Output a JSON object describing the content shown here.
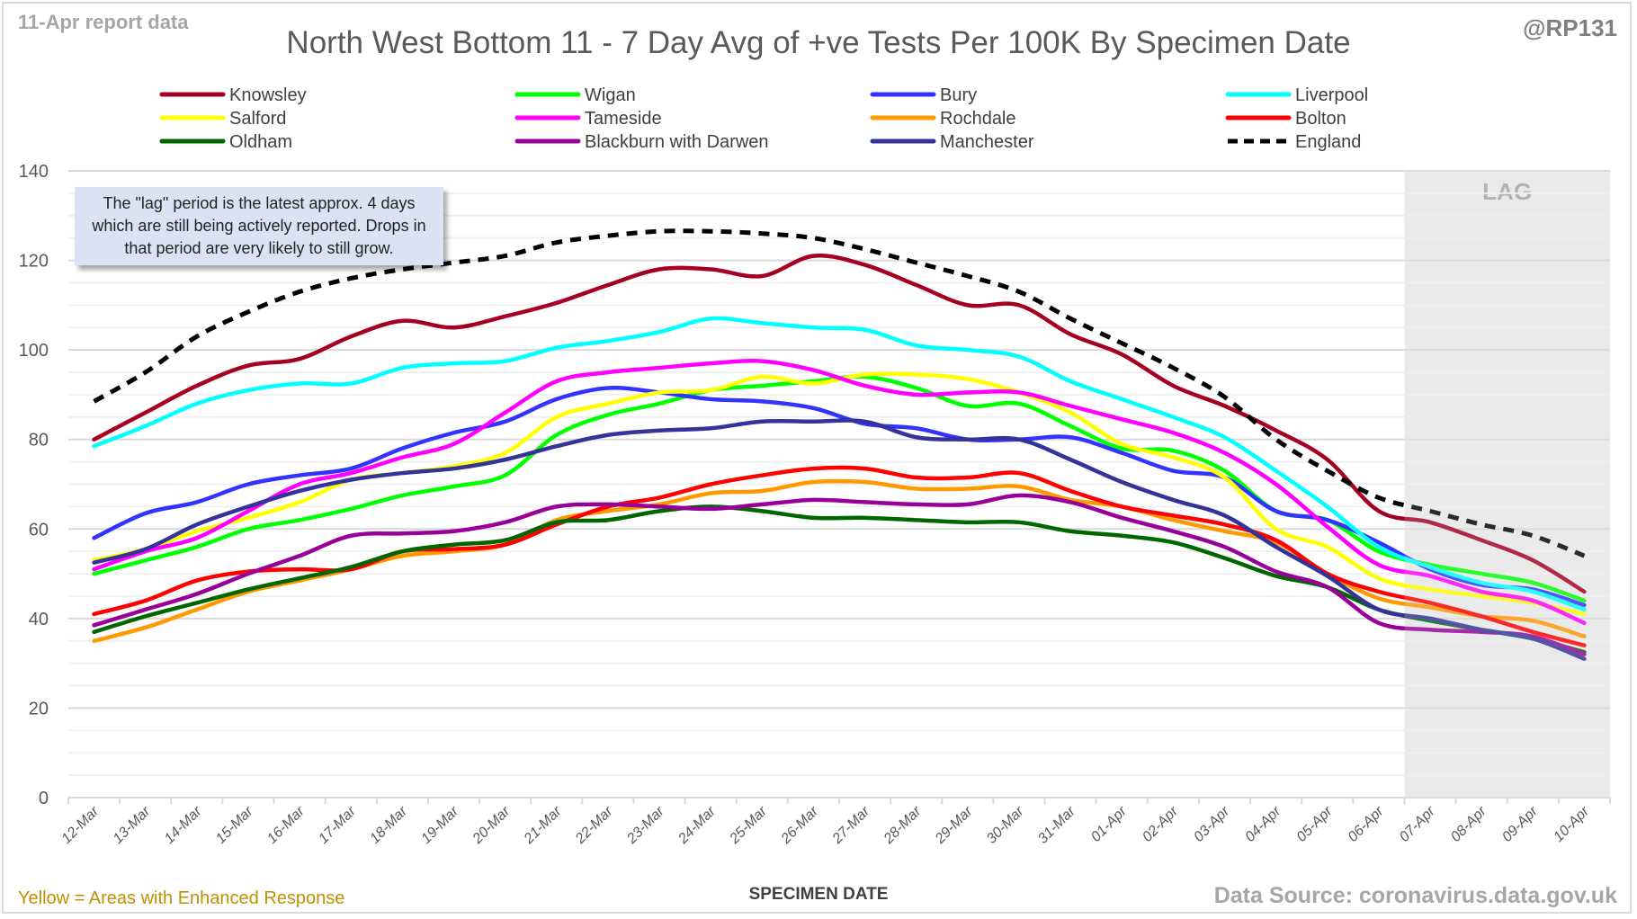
{
  "header": {
    "report_date": "11-Apr report data",
    "handle": "@RP131"
  },
  "footer": {
    "enhanced_response_note": "Yellow = Areas with Enhanced Response",
    "data_source": "Data Source: coronavirus.data.gov.uk"
  },
  "annotation": {
    "lag_note": "The \"lag\" period is the latest approx. 4 days which are still being actively reported.  Drops in that period are very likely to still grow.",
    "lag_label": "LAG"
  },
  "chart_data": {
    "type": "line",
    "title": "North West Bottom 11 - 7 Day Avg of +ve Tests Per 100K By Specimen Date",
    "xlabel": "SPECIMEN DATE",
    "ylabel": "",
    "ylim": [
      0,
      140
    ],
    "yticks": [
      0,
      20,
      40,
      60,
      80,
      100,
      120,
      140
    ],
    "grid": true,
    "legend_position": "top",
    "lag_period": {
      "start": "07-Apr",
      "end": "10-Apr"
    },
    "categories": [
      "12-Mar",
      "13-Mar",
      "14-Mar",
      "15-Mar",
      "16-Mar",
      "17-Mar",
      "18-Mar",
      "19-Mar",
      "20-Mar",
      "21-Mar",
      "22-Mar",
      "23-Mar",
      "24-Mar",
      "25-Mar",
      "26-Mar",
      "27-Mar",
      "28-Mar",
      "29-Mar",
      "30-Mar",
      "31-Mar",
      "01-Apr",
      "02-Apr",
      "03-Apr",
      "04-Apr",
      "05-Apr",
      "06-Apr",
      "07-Apr",
      "08-Apr",
      "09-Apr",
      "10-Apr"
    ],
    "series": [
      {
        "name": "Knowsley",
        "color": "#a50021",
        "dashed": false,
        "values": [
          80,
          86,
          92,
          96.5,
          98,
          103,
          106.5,
          105,
          107.5,
          110.5,
          114.5,
          118,
          118,
          116.5,
          121,
          119,
          114.5,
          110,
          110,
          103.5,
          99,
          92,
          87.5,
          82,
          75.5,
          64,
          61.5,
          57.5,
          53,
          46
        ]
      },
      {
        "name": "Wigan",
        "color": "#00ff00",
        "dashed": false,
        "values": [
          50,
          53,
          56,
          60,
          62,
          64.5,
          67.5,
          69.5,
          72,
          81,
          85.5,
          88,
          91,
          92,
          93,
          94,
          91.5,
          87.5,
          88,
          83,
          78,
          77.5,
          73,
          64,
          62,
          55,
          52,
          50,
          48,
          44
        ]
      },
      {
        "name": "Bury",
        "color": "#3333ff",
        "dashed": false,
        "values": [
          58,
          63.5,
          66,
          70,
          72,
          73.5,
          78,
          81.5,
          84,
          89,
          91.5,
          90.5,
          89,
          88.5,
          87,
          83.5,
          82.5,
          80,
          80,
          80.5,
          77,
          73,
          71.5,
          64,
          62,
          57,
          51,
          47.5,
          46.5,
          43
        ]
      },
      {
        "name": "Liverpool",
        "color": "#00ffff",
        "dashed": false,
        "values": [
          78.5,
          83,
          88,
          91,
          92.5,
          92.5,
          96,
          97,
          97.5,
          100.5,
          102,
          104,
          107,
          106,
          105,
          104.5,
          101,
          100,
          98.5,
          93,
          89,
          85,
          80.5,
          73,
          65,
          56,
          51.5,
          48,
          46,
          42
        ]
      },
      {
        "name": "Salford",
        "color": "#ffff00",
        "dashed": false,
        "values": [
          53,
          55.5,
          59.5,
          62.5,
          66,
          71,
          72.5,
          74,
          77,
          85,
          88,
          90.5,
          91,
          94,
          92.5,
          94.5,
          94.5,
          93.5,
          90.5,
          86,
          79,
          76,
          71.5,
          60,
          56,
          49,
          46.5,
          45,
          43.5,
          41
        ]
      },
      {
        "name": "Tameside",
        "color": "#ff00ff",
        "dashed": false,
        "values": [
          51,
          55,
          58,
          64,
          70,
          72.5,
          76,
          79,
          86,
          93,
          95,
          96,
          97,
          97.5,
          95.5,
          92,
          90,
          90.5,
          90.5,
          87.5,
          84.5,
          81.5,
          77,
          70,
          60.5,
          52,
          49.5,
          46,
          44,
          39
        ]
      },
      {
        "name": "Rochdale",
        "color": "#ff9900",
        "dashed": false,
        "values": [
          35,
          38,
          42,
          46,
          48.5,
          51,
          54,
          55,
          56.5,
          62,
          64,
          65.5,
          68,
          68.5,
          70.5,
          70.5,
          69,
          69,
          69.5,
          66.5,
          65,
          62,
          59.5,
          57,
          50,
          44.5,
          42.5,
          40.5,
          39.5,
          36
        ]
      },
      {
        "name": "Bolton",
        "color": "#ff0000",
        "dashed": false,
        "values": [
          41,
          44,
          48.5,
          50.5,
          51,
          51,
          55,
          55.5,
          56.5,
          61,
          65,
          67,
          70,
          72,
          73.5,
          73.5,
          71.5,
          71.5,
          72.5,
          68.5,
          65,
          63,
          61,
          57.5,
          50,
          46,
          43.5,
          40.5,
          37,
          34
        ]
      },
      {
        "name": "Oldham",
        "color": "#006600",
        "dashed": false,
        "values": [
          37,
          40.5,
          43.5,
          46.5,
          49,
          51.5,
          55,
          56.5,
          57.5,
          61.5,
          62,
          64,
          65,
          64,
          62.5,
          62.5,
          62,
          61.5,
          61.5,
          59.5,
          58.5,
          57,
          53.5,
          49.5,
          47,
          42,
          39.5,
          37.5,
          35.5,
          32.5
        ]
      },
      {
        "name": "Blackburn with Darwen",
        "color": "#990099",
        "dashed": false,
        "values": [
          38.5,
          42,
          45.5,
          50,
          54,
          58.5,
          59,
          59.5,
          61.5,
          65,
          65.5,
          65,
          64.5,
          65.5,
          66.5,
          66,
          65.5,
          65.5,
          67.5,
          66,
          62.5,
          59.5,
          56,
          50.5,
          47,
          39,
          37.5,
          37,
          36,
          32
        ]
      },
      {
        "name": "Manchester",
        "color": "#333399",
        "dashed": false,
        "values": [
          52.5,
          55.5,
          61,
          65,
          68.5,
          71,
          72.5,
          73.5,
          75.5,
          78.5,
          81,
          82,
          82.5,
          84,
          84,
          84,
          80.5,
          80,
          80,
          75.5,
          70.5,
          66.5,
          63,
          56,
          49.5,
          42,
          40,
          37.5,
          35.5,
          31
        ]
      },
      {
        "name": "England",
        "color": "#000000",
        "dashed": true,
        "values": [
          88.5,
          95,
          103,
          108.5,
          113,
          116,
          118,
          119.5,
          121,
          124,
          125.5,
          126.5,
          126.5,
          126,
          125,
          122.5,
          119.5,
          116.5,
          113,
          107,
          101.5,
          96,
          89.5,
          80,
          73,
          67,
          64,
          61,
          58.5,
          54
        ]
      }
    ]
  }
}
